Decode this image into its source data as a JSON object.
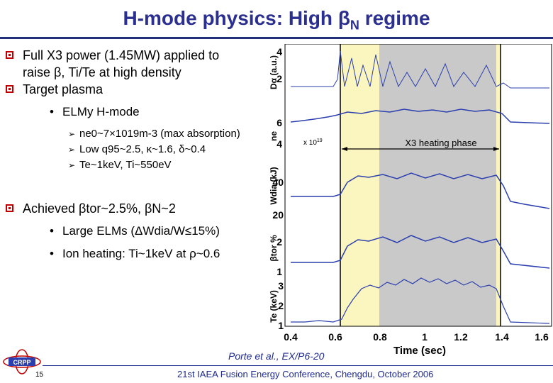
{
  "title": {
    "prefix": "H-mode physics: High ",
    "beta": "β",
    "sub": "N",
    "suffix": " regime"
  },
  "bullets": {
    "l1": "Full X3 power (1.45MW) applied to",
    "l2": "raise β, Ti/Te at high density",
    "l3": "Target plasma",
    "l4": "ELMy H-mode",
    "l5": "ne0~7×1019m-3 (max absorption)",
    "l6": "Low q95~2.5, κ~1.6, δ~0.4",
    "l7": "Te~1keV, Ti~550eV",
    "l8": "Achieved βtor~2.5%, βN~2",
    "l9": "Large ELMs (ΔWdia/W≤15%)",
    "l10": "Ion heating: Ti~1keV at ρ~0.6"
  },
  "plot": {
    "heating_label": "X3 heating phase",
    "ne_scale": "x 10",
    "ne_scale_exp": "19",
    "xlabel": "Time (sec)",
    "xticks": [
      "0.4",
      "0.6",
      "0.8",
      "1",
      "1.2",
      "1.4",
      "1.6"
    ],
    "panels": [
      {
        "label": "Dα (a.u.)",
        "ticks": [
          "4",
          "2"
        ]
      },
      {
        "label": "ne",
        "ticks": [
          "6",
          "4"
        ]
      },
      {
        "label": "Wdia (kJ)",
        "ticks": [
          "40",
          "20"
        ]
      },
      {
        "label": "βtor %",
        "ticks": [
          "2",
          "1"
        ]
      },
      {
        "label": "Te (keV)",
        "ticks": [
          "3",
          "2",
          "1"
        ]
      }
    ],
    "colors": {
      "line": "#2b3fae",
      "heating_shade": "#c9c9c9",
      "ecrh_shade": "#fbf5c0"
    }
  },
  "footer": {
    "citation": "Porte et al., EX/P6-20",
    "conference": "21st IAEA Fusion Energy Conference, Chengdu, October 2006",
    "page": "15",
    "logo_text": "CRPP"
  }
}
